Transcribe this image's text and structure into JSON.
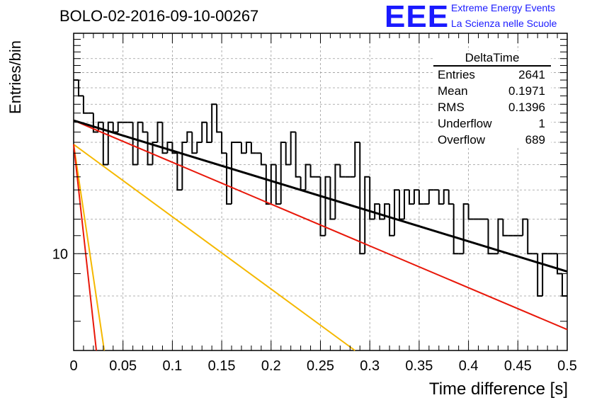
{
  "header": {
    "title": "BOLO-02-2016-09-10-00267",
    "logo_mark": "EEE",
    "logo_line1": "Extreme Energy Events",
    "logo_line2": "La Scienza nelle Scuole"
  },
  "stats": {
    "title": "DeltaTime",
    "rows": [
      {
        "label": "Entries",
        "value": "2641"
      },
      {
        "label": "Mean",
        "value": "0.1971"
      },
      {
        "label": "RMS",
        "value": "0.1396"
      },
      {
        "label": "Underflow",
        "value": "1"
      },
      {
        "label": "Overflow",
        "value": "689"
      }
    ]
  },
  "colors": {
    "histogram": "#000000",
    "fit_total": "#000000",
    "fit_component_1": "#e8180a",
    "fit_component_2": "#f5b800",
    "grid": "#9a9a9a"
  },
  "chart_data": {
    "type": "line",
    "xlabel": "Time difference [s]",
    "ylabel": "Entries/bin",
    "xlim": [
      0,
      0.5
    ],
    "ylim": [
      6,
      32
    ],
    "yscale": "log",
    "grid": true,
    "x_ticks": [
      "0",
      "0.05",
      "0.1",
      "0.15",
      "0.2",
      "0.25",
      "0.3",
      "0.35",
      "0.4",
      "0.45",
      "0.5"
    ],
    "y_ticks": [
      "10"
    ],
    "legend": "stats box top-right",
    "histogram": {
      "bin_width": 0.005,
      "values": [
        25,
        23,
        21,
        21,
        19,
        20,
        16,
        20,
        19,
        20,
        20,
        20,
        16,
        20,
        19,
        16,
        18,
        20,
        17,
        18,
        17,
        14,
        18,
        19,
        17,
        18,
        20,
        18,
        22,
        19,
        17,
        13,
        18,
        18,
        17,
        18,
        17,
        17,
        16,
        13,
        16,
        13,
        18,
        16,
        19,
        15,
        14,
        16,
        15,
        15,
        11,
        15,
        12,
        16,
        15,
        15,
        15,
        18,
        10,
        15,
        12,
        13,
        12,
        13,
        11,
        14,
        12,
        14,
        13,
        14,
        13,
        13,
        14,
        14,
        13,
        14,
        13,
        10,
        10,
        13,
        12,
        12,
        12,
        12,
        10,
        10,
        12,
        11,
        11,
        11,
        11,
        12,
        10,
        10,
        8,
        10,
        10,
        10,
        9,
        8
      ]
    },
    "series": [
      {
        "name": "fit_total",
        "x": [
          0.0,
          0.5
        ],
        "y": [
          20.2,
          9.1
        ]
      },
      {
        "name": "fit_component_1",
        "x": [
          0.0,
          0.5
        ],
        "y": [
          20.2,
          6.7
        ]
      },
      {
        "name": "fit_component_1_fast",
        "x": [
          0.0,
          0.023
        ],
        "y": [
          17.8,
          6.0
        ]
      },
      {
        "name": "fit_component_2",
        "x": [
          0.0,
          0.285
        ],
        "y": [
          17.8,
          6.0
        ]
      },
      {
        "name": "fit_component_2_fast",
        "x": [
          0.0,
          0.031
        ],
        "y": [
          17.8,
          6.0
        ]
      }
    ]
  }
}
